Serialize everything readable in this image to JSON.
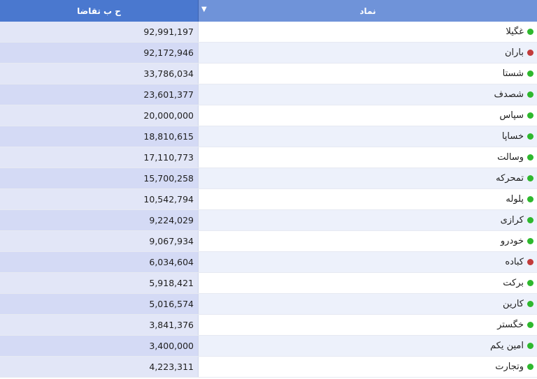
{
  "header": {
    "symbol_label": "نماد",
    "volume_label": "ح ب تقاضا",
    "sort_icon": "triangle-down-icon"
  },
  "colors": {
    "status_green": "#2eb82e",
    "status_red": "#c23b3b"
  },
  "rows": [
    {
      "symbol": "غگیلا",
      "volume": "92,991,197",
      "status": "green"
    },
    {
      "symbol": "باران",
      "volume": "92,172,946",
      "status": "red"
    },
    {
      "symbol": "شستا",
      "volume": "33,786,034",
      "status": "green"
    },
    {
      "symbol": "شصدف",
      "volume": "23,601,377",
      "status": "green"
    },
    {
      "symbol": "سپاس",
      "volume": "20,000,000",
      "status": "green"
    },
    {
      "symbol": "خساپا",
      "volume": "18,810,615",
      "status": "green"
    },
    {
      "symbol": "وسالت",
      "volume": "17,110,773",
      "status": "green"
    },
    {
      "symbol": "تمحرکه",
      "volume": "15,700,258",
      "status": "green"
    },
    {
      "symbol": "پلوله",
      "volume": "10,542,794",
      "status": "green"
    },
    {
      "symbol": "کرازی",
      "volume": "9,224,029",
      "status": "green"
    },
    {
      "symbol": "خودرو",
      "volume": "9,067,934",
      "status": "green"
    },
    {
      "symbol": "کباده",
      "volume": "6,034,604",
      "status": "red"
    },
    {
      "symbol": "برکت",
      "volume": "5,918,421",
      "status": "green"
    },
    {
      "symbol": "کارین",
      "volume": "5,016,574",
      "status": "green"
    },
    {
      "symbol": "خگستر",
      "volume": "3,841,376",
      "status": "green"
    },
    {
      "symbol": "امین یکم",
      "volume": "3,400,000",
      "status": "green"
    },
    {
      "symbol": "وتجارت",
      "volume": "4,223,311",
      "status": "green"
    }
  ]
}
